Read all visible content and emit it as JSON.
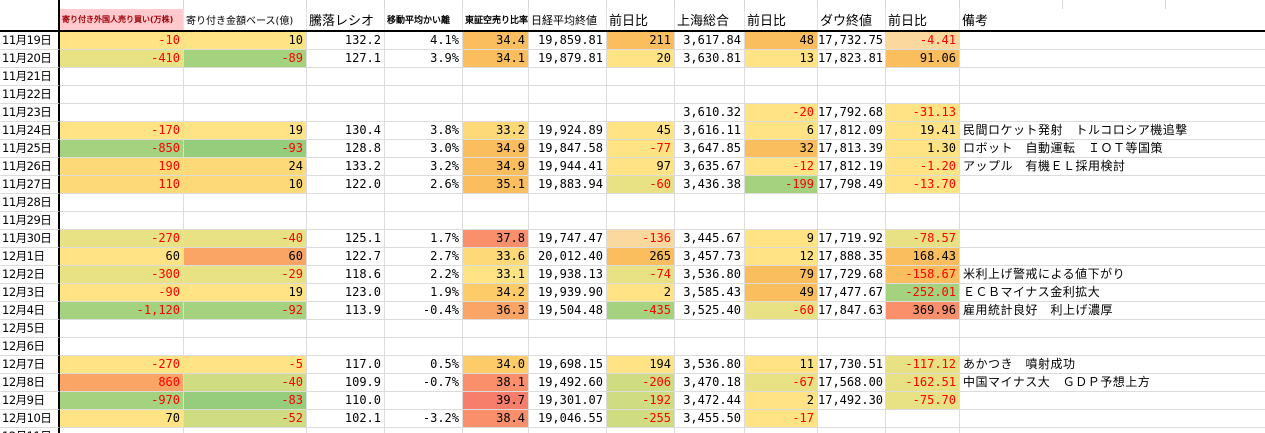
{
  "app": {
    "kind": "spreadsheet-market-log"
  },
  "colors": {
    "negative_text": "#FF0000",
    "header_accent_text": "#9C0006",
    "header_accent_bg": "#FFC9CE",
    "grid_line": "#DCDCDC",
    "divider": "#000000"
  },
  "palette": {
    "y": "#FFE385",
    "ol": "#FED978",
    "o2": "#FDCB67",
    "o": "#FBBE5E",
    "od": "#FAA465",
    "s": "#F9906B",
    "s2": "#F87E6C",
    "pe": "#FBD99E",
    "yg": "#E9E284",
    "yg2": "#CFDC81",
    "g": "#A4D27F",
    "g2": "#95CD7D"
  },
  "table": {
    "columns": [
      "",
      "寄り付き外国人売り買い(万株)",
      "寄り付き金額ベース(億)",
      "騰落レシオ",
      "移動平均かい離",
      "東証空売り比率",
      "日経平均終値",
      "前日比",
      "上海総合",
      "前日比",
      "ダウ終値",
      "前日比",
      "備考"
    ],
    "rows": [
      {
        "date": "11月19日",
        "cells": [
          {
            "v": "-10",
            "bg": "y",
            "r": true
          },
          {
            "v": "10",
            "bg": "y"
          },
          "132.2",
          "4.1%",
          {
            "v": "34.4",
            "bg": "o"
          },
          "19,859.81",
          {
            "v": "211",
            "bg": "o"
          },
          "3,617.84",
          {
            "v": "48",
            "bg": "o"
          },
          "17,732.75",
          {
            "v": "-4.41",
            "bg": "pe",
            "r": true
          },
          ""
        ]
      },
      {
        "date": "11月20日",
        "cells": [
          {
            "v": "-410",
            "bg": "yg",
            "r": true
          },
          {
            "v": "-89",
            "bg": "g",
            "r": true
          },
          "127.1",
          "3.9%",
          {
            "v": "34.1",
            "bg": "o"
          },
          "19,879.81",
          {
            "v": "20",
            "bg": "y"
          },
          "3,630.81",
          {
            "v": "13",
            "bg": "y"
          },
          "17,823.81",
          {
            "v": "91.06",
            "bg": "o"
          },
          ""
        ]
      },
      {
        "date": "11月21日",
        "cells": [
          "",
          "",
          "",
          "",
          "",
          "",
          "",
          "",
          "",
          "",
          "",
          ""
        ]
      },
      {
        "date": "11月22日",
        "cells": [
          "",
          "",
          "",
          "",
          "",
          "",
          "",
          "",
          "",
          "",
          "",
          ""
        ]
      },
      {
        "date": "11月23日",
        "cells": [
          "",
          "",
          "",
          "",
          "",
          "",
          "",
          "3,610.32",
          {
            "v": "-20",
            "bg": "y",
            "r": true
          },
          "17,792.68",
          {
            "v": "-31.13",
            "bg": "y",
            "r": true
          },
          ""
        ]
      },
      {
        "date": "11月24日",
        "cells": [
          {
            "v": "-170",
            "bg": "y",
            "r": true
          },
          {
            "v": "19",
            "bg": "y"
          },
          "130.4",
          "3.8%",
          {
            "v": "33.2",
            "bg": "ol"
          },
          "19,924.89",
          {
            "v": "45",
            "bg": "y"
          },
          "3,616.11",
          {
            "v": "6",
            "bg": "y"
          },
          "17,812.09",
          {
            "v": "19.41",
            "bg": "y"
          },
          "民間ロケット発射　トルコロシア機追撃"
        ]
      },
      {
        "date": "11月25日",
        "cells": [
          {
            "v": "-850",
            "bg": "g",
            "r": true
          },
          {
            "v": "-93",
            "bg": "g2",
            "r": true
          },
          "128.8",
          "3.0%",
          {
            "v": "34.9",
            "bg": "o"
          },
          "19,847.58",
          {
            "v": "-77",
            "bg": "y",
            "r": true
          },
          "3,647.85",
          {
            "v": "32",
            "bg": "o"
          },
          "17,813.39",
          {
            "v": "1.30",
            "bg": "y"
          },
          "ロボット　自動運転　ＩＯＴ等国策"
        ]
      },
      {
        "date": "11月26日",
        "cells": [
          {
            "v": "190",
            "bg": "ol",
            "r": true
          },
          {
            "v": "24",
            "bg": "ol"
          },
          "133.2",
          "3.2%",
          {
            "v": "34.9",
            "bg": "o"
          },
          "19,944.41",
          {
            "v": "97",
            "bg": "y"
          },
          "3,635.67",
          {
            "v": "-12",
            "bg": "y",
            "r": true
          },
          "17,812.19",
          {
            "v": "-1.20",
            "bg": "y",
            "r": true
          },
          "アップル　有機ＥＬ採用検討"
        ]
      },
      {
        "date": "11月27日",
        "cells": [
          {
            "v": "110",
            "bg": "ol",
            "r": true
          },
          {
            "v": "10",
            "bg": "ol"
          },
          "122.0",
          "2.6%",
          {
            "v": "35.1",
            "bg": "o"
          },
          "19,883.94",
          {
            "v": "-60",
            "bg": "yg",
            "r": true
          },
          "3,436.38",
          {
            "v": "-199",
            "bg": "g",
            "r": true
          },
          "17,798.49",
          {
            "v": "-13.70",
            "bg": "y",
            "r": true
          },
          ""
        ]
      },
      {
        "date": "11月28日",
        "cells": [
          "",
          "",
          "",
          "",
          "",
          "",
          "",
          "",
          "",
          "",
          "",
          ""
        ]
      },
      {
        "date": "11月29日",
        "cells": [
          "",
          "",
          "",
          "",
          "",
          "",
          "",
          "",
          "",
          "",
          "",
          ""
        ]
      },
      {
        "date": "11月30日",
        "cells": [
          {
            "v": "-270",
            "bg": "yg",
            "r": true
          },
          {
            "v": "-40",
            "bg": "yg",
            "r": true
          },
          "125.1",
          "1.7%",
          {
            "v": "37.8",
            "bg": "s"
          },
          "19,747.47",
          {
            "v": "-136",
            "bg": "pe",
            "r": true
          },
          "3,445.67",
          {
            "v": "9",
            "bg": "y"
          },
          "17,719.92",
          {
            "v": "-78.57",
            "bg": "yg",
            "r": true
          },
          ""
        ]
      },
      {
        "date": "12月1日",
        "cells": [
          {
            "v": "60",
            "bg": "y"
          },
          {
            "v": "60",
            "bg": "od"
          },
          "122.7",
          "2.7%",
          {
            "v": "33.6",
            "bg": "ol"
          },
          "20,012.40",
          {
            "v": "265",
            "bg": "o"
          },
          "3,457.73",
          {
            "v": "12",
            "bg": "y"
          },
          "17,888.35",
          {
            "v": "168.43",
            "bg": "o"
          },
          ""
        ]
      },
      {
        "date": "12月2日",
        "cells": [
          {
            "v": "-300",
            "bg": "yg",
            "r": true
          },
          {
            "v": "-29",
            "bg": "yg",
            "r": true
          },
          "118.6",
          "2.2%",
          {
            "v": "33.1",
            "bg": "y"
          },
          "19,938.13",
          {
            "v": "-74",
            "bg": "yg",
            "r": true
          },
          "3,536.80",
          {
            "v": "79",
            "bg": "o"
          },
          "17,729.68",
          {
            "v": "-158.67",
            "bg": "o",
            "r": true
          },
          "米利上げ警戒による値下がり"
        ]
      },
      {
        "date": "12月3日",
        "cells": [
          {
            "v": "-90",
            "bg": "y",
            "r": true
          },
          {
            "v": "19",
            "bg": "y"
          },
          "123.0",
          "1.9%",
          {
            "v": "34.2",
            "bg": "o2"
          },
          "19,939.90",
          {
            "v": "2",
            "bg": "y"
          },
          "3,585.43",
          {
            "v": "49",
            "bg": "o"
          },
          "17,477.67",
          {
            "v": "-252.01",
            "bg": "g",
            "r": true
          },
          "ＥＣＢマイナス金利拡大"
        ]
      },
      {
        "date": "12月4日",
        "cells": [
          {
            "v": "-1,120",
            "bg": "g",
            "r": true
          },
          {
            "v": "-92",
            "bg": "g",
            "r": true
          },
          "113.9",
          "-0.4%",
          {
            "v": "36.3",
            "bg": "od"
          },
          "19,504.48",
          {
            "v": "-435",
            "bg": "g",
            "r": true
          },
          "3,525.40",
          {
            "v": "-60",
            "bg": "yg",
            "r": true
          },
          "17,847.63",
          {
            "v": "369.96",
            "bg": "s"
          },
          "雇用統計良好　利上げ濃厚"
        ]
      },
      {
        "date": "12月5日",
        "cells": [
          "",
          "",
          "",
          "",
          "",
          "",
          "",
          "",
          "",
          "",
          "",
          ""
        ]
      },
      {
        "date": "12月6日",
        "cells": [
          "",
          "",
          "",
          "",
          "",
          "",
          "",
          "",
          "",
          "",
          "",
          ""
        ]
      },
      {
        "date": "12月7日",
        "cells": [
          {
            "v": "-270",
            "bg": "y",
            "r": true
          },
          {
            "v": "-5",
            "bg": "y",
            "r": true
          },
          "117.0",
          "0.5%",
          {
            "v": "34.0",
            "bg": "o2"
          },
          "19,698.15",
          {
            "v": "194",
            "bg": "y"
          },
          "3,536.80",
          {
            "v": "11",
            "bg": "y"
          },
          "17,730.51",
          {
            "v": "-117.12",
            "bg": "yg",
            "r": true
          },
          "あかつき　噴射成功"
        ]
      },
      {
        "date": "12月8日",
        "cells": [
          {
            "v": "860",
            "bg": "od",
            "r": true
          },
          {
            "v": "-40",
            "bg": "yg2",
            "r": true
          },
          "109.9",
          "-0.7%",
          {
            "v": "38.1",
            "bg": "s"
          },
          "19,492.60",
          {
            "v": "-206",
            "bg": "yg2",
            "r": true
          },
          "3,470.18",
          {
            "v": "-67",
            "bg": "yg",
            "r": true
          },
          "17,568.00",
          {
            "v": "-162.51",
            "bg": "yg",
            "r": true
          },
          "中国マイナス大　ＧＤＰ予想上方"
        ]
      },
      {
        "date": "12月9日",
        "cells": [
          {
            "v": "-970",
            "bg": "g",
            "r": true
          },
          {
            "v": "-83",
            "bg": "g2",
            "r": true
          },
          "110.0",
          "",
          {
            "v": "39.7",
            "bg": "s2"
          },
          "19,301.07",
          {
            "v": "-192",
            "bg": "yg2",
            "r": true
          },
          "3,472.44",
          {
            "v": "2",
            "bg": "y"
          },
          "17,492.30",
          {
            "v": "-75.70",
            "bg": "yg",
            "r": true
          },
          ""
        ]
      },
      {
        "date": "12月10日",
        "cells": [
          {
            "v": "70",
            "bg": "y"
          },
          {
            "v": "-52",
            "bg": "yg2",
            "r": true
          },
          "102.1",
          "-3.2%",
          {
            "v": "38.4",
            "bg": "s"
          },
          "19,046.55",
          {
            "v": "-255",
            "bg": "yg2",
            "r": true
          },
          "3,455.50",
          {
            "v": "-17",
            "bg": "y",
            "r": true
          },
          "",
          "",
          ""
        ]
      },
      {
        "date": "12月11日",
        "cells": [
          "",
          "",
          "",
          "",
          "",
          "",
          "",
          "",
          "",
          "",
          "",
          ""
        ]
      }
    ]
  }
}
